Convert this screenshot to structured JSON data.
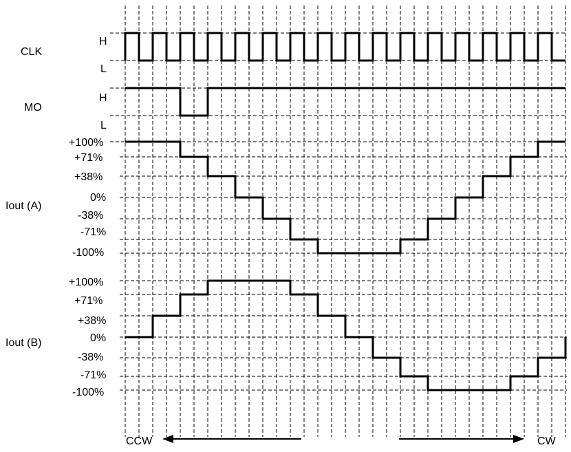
{
  "signals": [
    {
      "id": "clk",
      "label": "CLK",
      "levels": [
        "H",
        "L"
      ]
    },
    {
      "id": "mo",
      "label": "MO",
      "levels": [
        "H",
        "L"
      ]
    },
    {
      "id": "iout_a",
      "label": "Iout (A)",
      "levels": [
        "+100%",
        "+71%",
        "+38%",
        "0%",
        "-38%",
        "-71%",
        "-100%"
      ]
    },
    {
      "id": "iout_b",
      "label": "Iout (B)",
      "levels": [
        "+100%",
        "+71%",
        "+38%",
        "0%",
        "-38%",
        "-71%",
        "-100%"
      ]
    }
  ],
  "waveforms": {
    "clk_periods": 16,
    "mo": [
      "H",
      "H",
      "L",
      "H",
      "H",
      "H",
      "H",
      "H",
      "H",
      "H",
      "H",
      "H",
      "H",
      "H",
      "H",
      "H"
    ],
    "iout_a": [
      "+100%",
      "+100%",
      "+71%",
      "+38%",
      "0%",
      "-38%",
      "-71%",
      "-100%",
      "-100%",
      "-100%",
      "-71%",
      "-38%",
      "0%",
      "+38%",
      "+71%",
      "+100%"
    ],
    "iout_b": [
      "0%",
      "+38%",
      "+71%",
      "+100%",
      "+100%",
      "+100%",
      "+71%",
      "+38%",
      "0%",
      "-38%",
      "-71%",
      "-100%",
      "-100%",
      "-100%",
      "-71%",
      "-38%"
    ]
  },
  "direction": {
    "left_label": "CCW",
    "right_label": "CW"
  }
}
